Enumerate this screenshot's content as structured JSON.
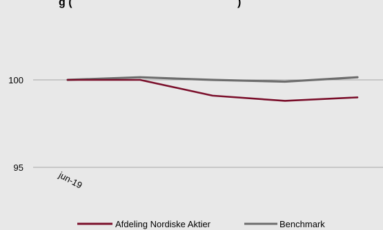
{
  "chart_data": {
    "type": "line",
    "title_fragment": "g (",
    "title_fragment_end": ")",
    "x": [
      "jun-19",
      "",
      "",
      "",
      ""
    ],
    "series": [
      {
        "name": "Afdeling Nordiske Aktier",
        "color": "#7a0e2a",
        "values": [
          100.0,
          100.0,
          99.1,
          98.8,
          99.0
        ]
      },
      {
        "name": "Benchmark",
        "color": "#6d6d6d",
        "values": [
          100.0,
          100.15,
          100.0,
          99.9,
          100.15
        ]
      }
    ],
    "y_ticks": [
      95,
      100
    ],
    "ylim": [
      94,
      104
    ],
    "grid": true,
    "legend": "bottom-center"
  }
}
